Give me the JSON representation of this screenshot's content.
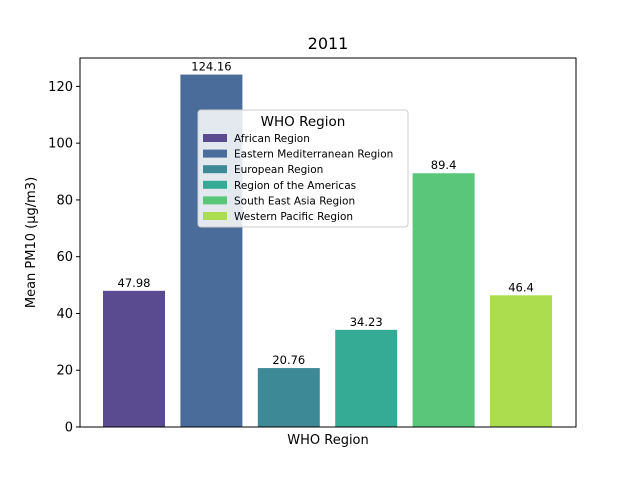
{
  "chart_data": {
    "type": "bar",
    "title": "2011",
    "xlabel": "WHO Region",
    "ylabel": "Mean PM10 (μg/m3)",
    "ylim": [
      0,
      130
    ],
    "yticks": [
      0,
      20,
      40,
      60,
      80,
      100,
      120
    ],
    "grid": false,
    "categories": [
      "African Region",
      "Eastern Mediterranean Region",
      "European Region",
      "Region of the Americas",
      "South East Asia Region",
      "Western Pacific Region"
    ],
    "values": [
      47.98,
      124.16,
      20.76,
      34.23,
      89.4,
      46.4
    ],
    "data_labels": [
      "47.98",
      "124.16",
      "20.76",
      "34.23",
      "89.4",
      "46.4"
    ],
    "colors": [
      "#5a4a8f",
      "#4a6c9a",
      "#3d8a96",
      "#35ab95",
      "#5ac67a",
      "#abdd4f"
    ],
    "legend": {
      "title": "WHO Region",
      "placement": "upper-center",
      "entries": [
        "African Region",
        "Eastern Mediterranean Region",
        "European Region",
        "Region of the Americas",
        "South East Asia Region",
        "Western Pacific Region"
      ]
    }
  }
}
